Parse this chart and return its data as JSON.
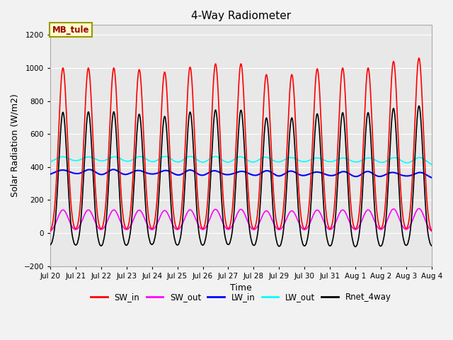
{
  "title": "4-Way Radiometer",
  "xlabel": "Time",
  "ylabel": "Solar Radiation (W/m2)",
  "ylim": [
    -200,
    1260
  ],
  "yticks": [
    -200,
    0,
    200,
    400,
    600,
    800,
    1000,
    1200
  ],
  "num_days": 15,
  "annotation_label": "MB_tule",
  "legend_entries": [
    "SW_in",
    "SW_out",
    "LW_in",
    "LW_out",
    "Rnet_4way"
  ],
  "colors": {
    "SW_in": "#FF0000",
    "SW_out": "#FF00FF",
    "LW_in": "#0000FF",
    "LW_out": "#00FFFF",
    "Rnet_4way": "#000000"
  },
  "fig_facecolor": "#F2F2F2",
  "ax_facecolor": "#E8E8E8",
  "grid_color": "#FFFFFF",
  "x_tick_labels": [
    "Jul 20",
    "Jul 21",
    "Jul 22",
    "Jul 23",
    "Jul 24",
    "Jul 25",
    "Jul 26",
    "Jul 27",
    "Jul 28",
    "Jul 29",
    "Jul 30",
    "Jul 31",
    "Aug 1",
    "Aug 2",
    "Aug 3",
    "Aug 4"
  ],
  "sw_in_peaks": [
    1000,
    1000,
    1000,
    990,
    975,
    1005,
    1025,
    1025,
    960,
    960,
    995,
    1000,
    1000,
    1040,
    1060
  ],
  "lw_in_base": 340,
  "lw_out_base": 420,
  "rnet_night": -100,
  "rnet_day_peak": 770
}
